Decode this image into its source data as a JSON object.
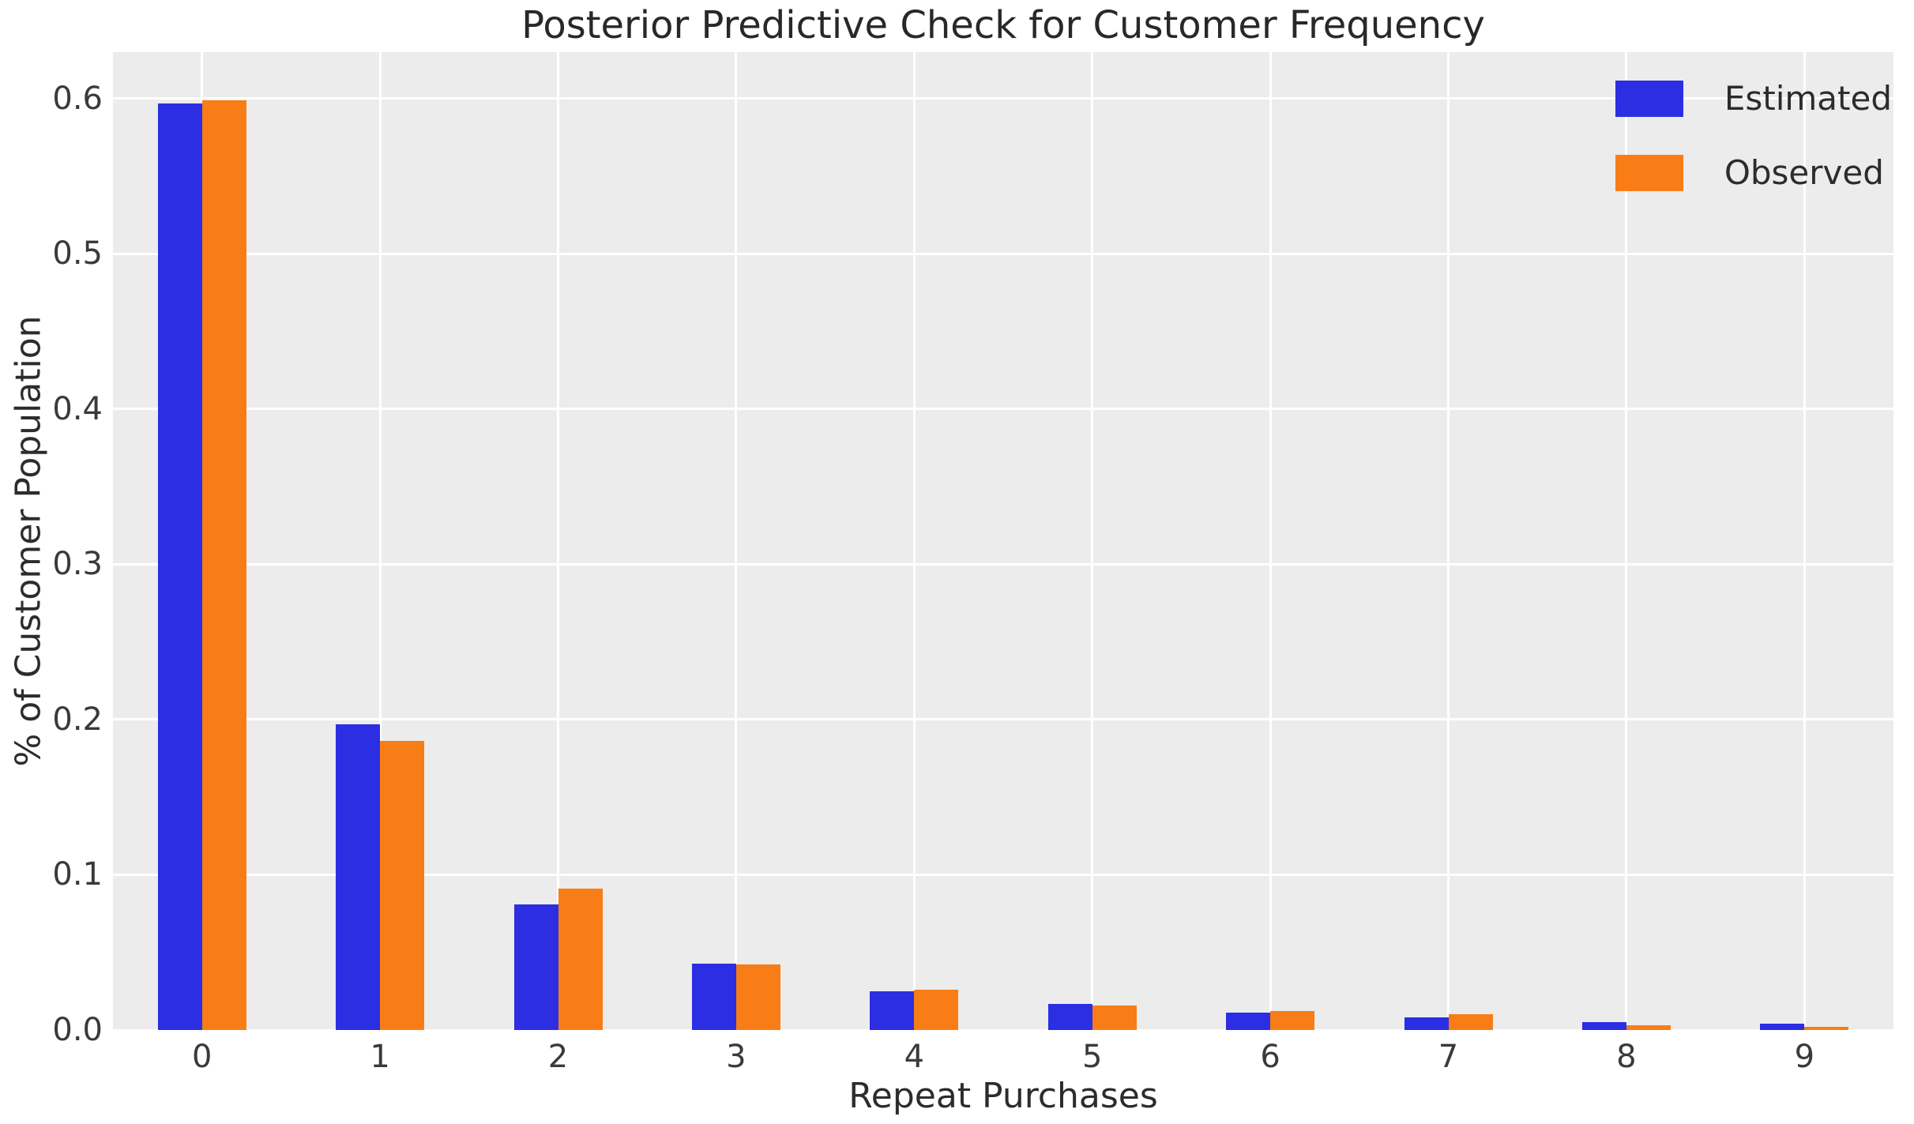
{
  "figure": {
    "background_color": "#ffffff",
    "plot_background_color": "#ececec",
    "grid_color": "#ffffff",
    "text_color": "#2c2c2c",
    "tick_color": "#3a3a3a"
  },
  "chart_data": {
    "type": "bar",
    "title": "Posterior Predictive Check for Customer Frequency",
    "xlabel": "Repeat Purchases",
    "ylabel": "% of Customer Population",
    "categories": [
      "0",
      "1",
      "2",
      "3",
      "4",
      "5",
      "6",
      "7",
      "8",
      "9"
    ],
    "series": [
      {
        "name": "Estimated",
        "color": "#2b2ee3",
        "values": [
          0.597,
          0.197,
          0.081,
          0.043,
          0.025,
          0.017,
          0.011,
          0.008,
          0.005,
          0.004
        ]
      },
      {
        "name": "Observed",
        "color": "#f87d16",
        "values": [
          0.599,
          0.186,
          0.091,
          0.042,
          0.026,
          0.016,
          0.012,
          0.01,
          0.003,
          0.002
        ]
      }
    ],
    "yticks": [
      {
        "label": "0.0",
        "value": 0.0
      },
      {
        "label": "0.1",
        "value": 0.1
      },
      {
        "label": "0.2",
        "value": 0.2
      },
      {
        "label": "0.3",
        "value": 0.3
      },
      {
        "label": "0.4",
        "value": 0.4
      },
      {
        "label": "0.5",
        "value": 0.5
      },
      {
        "label": "0.6",
        "value": 0.6
      }
    ],
    "ylim": [
      0,
      0.63
    ],
    "grid": true,
    "legend_position": "upper right"
  }
}
